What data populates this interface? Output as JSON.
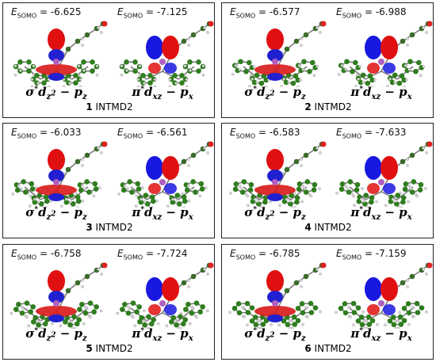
{
  "panels": [
    {
      "energies": [
        {
          "symbol": "E",
          "sub": "SOMO",
          "text": " = -6.625"
        },
        {
          "symbol": "E",
          "sub": "SOMO",
          "text": " = -7.125"
        }
      ],
      "orbitals": [
        [
          {
            "t": "σ"
          },
          {
            "t": "*",
            "kind": "sup"
          },
          {
            "t": "d"
          },
          {
            "t": "z",
            "kind": "sub",
            "sup": "2"
          },
          {
            "t": " − p"
          },
          {
            "t": "z",
            "kind": "sub"
          }
        ],
        [
          {
            "t": "π"
          },
          {
            "t": "*",
            "kind": "sup"
          },
          {
            "t": "d"
          },
          {
            "t": "xz",
            "kind": "sub"
          },
          {
            "t": " − p"
          },
          {
            "t": "x",
            "kind": "sub"
          }
        ]
      ],
      "number": "1",
      "name": "INTMD2"
    },
    {
      "energies": [
        {
          "symbol": "E",
          "sub": "SOMO",
          "text": " = -6.577"
        },
        {
          "symbol": "E",
          "sub": "SOMO",
          "text": " = -6.988"
        }
      ],
      "orbitals": [
        [
          {
            "t": "σ"
          },
          {
            "t": "*",
            "kind": "sup"
          },
          {
            "t": "d"
          },
          {
            "t": "z",
            "kind": "sub",
            "sup": "2"
          },
          {
            "t": " − p"
          },
          {
            "t": "z",
            "kind": "sub"
          }
        ],
        [
          {
            "t": "π"
          },
          {
            "t": "*",
            "kind": "sup"
          },
          {
            "t": "d"
          },
          {
            "t": "xz",
            "kind": "sub"
          },
          {
            "t": " − p"
          },
          {
            "t": "x",
            "kind": "sub"
          }
        ]
      ],
      "number": "2",
      "name": "INTMD2"
    },
    {
      "energies": [
        {
          "symbol": "E",
          "sub": "SOMO",
          "text": " = -6.033"
        },
        {
          "symbol": "E",
          "sub": "SOMO",
          "text": " = -6.561"
        }
      ],
      "orbitals": [
        [
          {
            "t": "σ"
          },
          {
            "t": "*",
            "kind": "sup"
          },
          {
            "t": "d"
          },
          {
            "t": "z",
            "kind": "sub",
            "sup": "2"
          },
          {
            "t": " − p"
          },
          {
            "t": "z",
            "kind": "sub"
          }
        ],
        [
          {
            "t": "π"
          },
          {
            "t": "*",
            "kind": "sup"
          },
          {
            "t": "d"
          },
          {
            "t": "xz",
            "kind": "sub"
          },
          {
            "t": " − p"
          },
          {
            "t": "x",
            "kind": "sub"
          }
        ]
      ],
      "number": "3",
      "name": "INTMD2"
    },
    {
      "energies": [
        {
          "symbol": "E",
          "sub": "SOMO",
          "text": " = -6.583"
        },
        {
          "symbol": "E",
          "sub": "SOMO",
          "text": " = -7.633"
        }
      ],
      "orbitals": [
        [
          {
            "t": "σ"
          },
          {
            "t": "*",
            "kind": "sup"
          },
          {
            "t": "d"
          },
          {
            "t": "z",
            "kind": "sub",
            "sup": "2"
          },
          {
            "t": " − p"
          },
          {
            "t": "z",
            "kind": "sub"
          }
        ],
        [
          {
            "t": "π"
          },
          {
            "t": "*",
            "kind": "sup"
          },
          {
            "t": "d"
          },
          {
            "t": "xz",
            "kind": "sub"
          },
          {
            "t": " − p"
          },
          {
            "t": "x",
            "kind": "sub"
          }
        ]
      ],
      "number": "4",
      "name": "INTMD2"
    },
    {
      "energies": [
        {
          "symbol": "E",
          "sub": "SOMO",
          "text": " = -6.758"
        },
        {
          "symbol": "E",
          "sub": "SOMO",
          "text": " = -7.724"
        }
      ],
      "orbitals": [
        [
          {
            "t": "σ"
          },
          {
            "t": "*",
            "kind": "sup"
          },
          {
            "t": "d"
          },
          {
            "t": "z",
            "kind": "sub",
            "sup": "2"
          },
          {
            "t": " − p"
          },
          {
            "t": "z",
            "kind": "sub"
          }
        ],
        [
          {
            "t": "π"
          },
          {
            "t": "*",
            "kind": "sup"
          },
          {
            "t": "d"
          },
          {
            "t": "xz",
            "kind": "sub"
          },
          {
            "t": " − p"
          },
          {
            "t": "x",
            "kind": "sub"
          }
        ]
      ],
      "number": "5",
      "name": "INTMD2"
    },
    {
      "energies": [
        {
          "symbol": "E",
          "sub": "SOMO",
          "text": " = -6.785"
        },
        {
          "symbol": "E",
          "sub": "SOMO",
          "text": " = -7.159"
        }
      ],
      "orbitals": [
        [
          {
            "t": "σ"
          },
          {
            "t": "*",
            "kind": "sup"
          },
          {
            "t": "d"
          },
          {
            "t": "z",
            "kind": "sub",
            "sup": "2"
          },
          {
            "t": " − p"
          },
          {
            "t": "z",
            "kind": "sub"
          }
        ],
        [
          {
            "t": "π"
          },
          {
            "t": "*",
            "kind": "sup"
          },
          {
            "t": "d"
          },
          {
            "t": "xz",
            "kind": "sub"
          },
          {
            "t": " − p"
          },
          {
            "t": "x",
            "kind": "sub"
          }
        ]
      ],
      "number": "6",
      "name": "INTMD2"
    }
  ]
}
